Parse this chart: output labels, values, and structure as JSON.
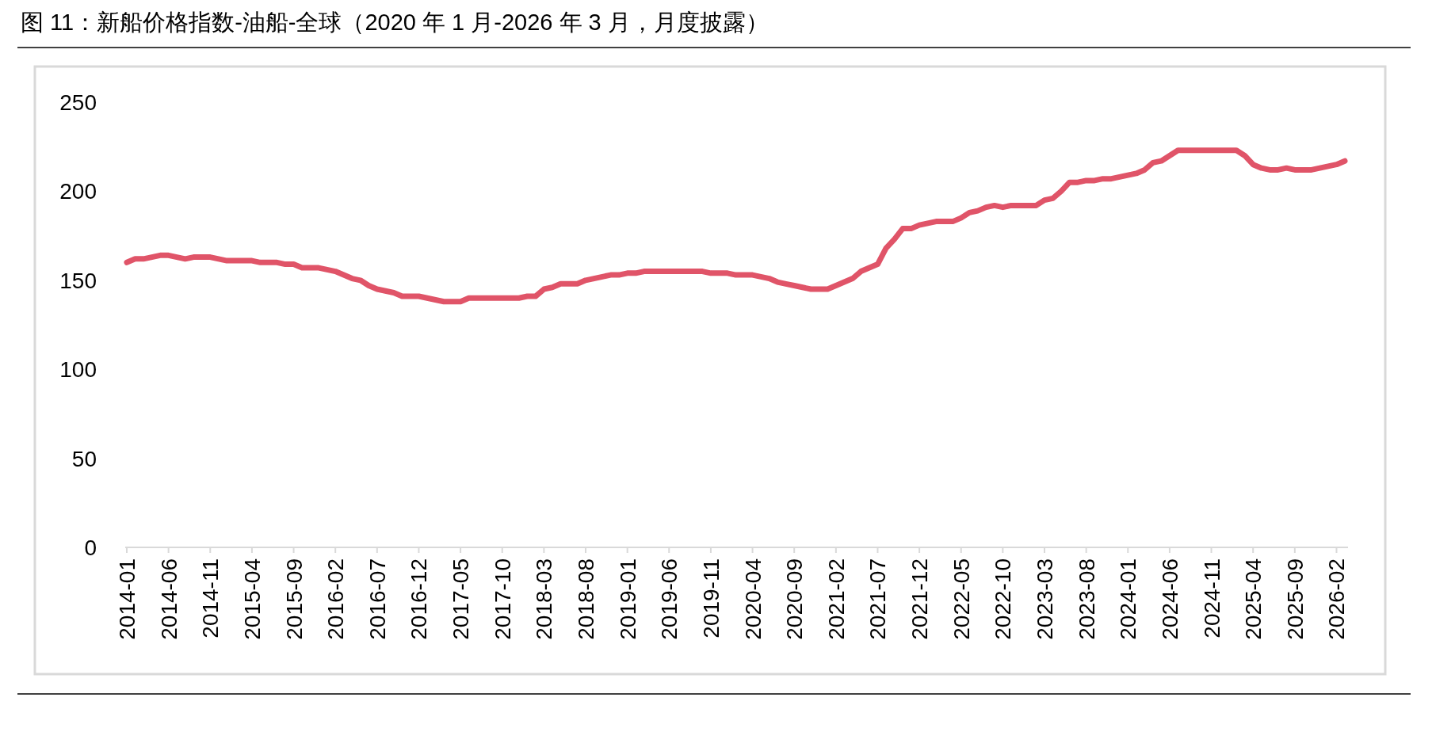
{
  "chart_data": {
    "type": "line",
    "title": "图 11：新船价格指数-油船-全球（2020 年 1 月-2026 年 3 月，月度披露）",
    "categories": [
      "2014-01",
      null,
      null,
      null,
      null,
      "2014-06",
      null,
      null,
      null,
      null,
      "2014-11",
      null,
      null,
      null,
      null,
      "2015-04",
      null,
      null,
      null,
      null,
      "2015-09",
      null,
      null,
      null,
      null,
      "2016-02",
      null,
      null,
      null,
      null,
      "2016-07",
      null,
      null,
      null,
      null,
      "2016-12",
      null,
      null,
      null,
      null,
      "2017-05",
      null,
      null,
      null,
      null,
      "2017-10",
      null,
      null,
      null,
      null,
      "2018-03",
      null,
      null,
      null,
      null,
      "2018-08",
      null,
      null,
      null,
      null,
      "2019-01",
      null,
      null,
      null,
      null,
      "2019-06",
      null,
      null,
      null,
      null,
      "2019-11",
      null,
      null,
      null,
      null,
      "2020-04",
      null,
      null,
      null,
      null,
      "2020-09",
      null,
      null,
      null,
      null,
      "2021-02",
      null,
      null,
      null,
      null,
      "2021-07",
      null,
      null,
      null,
      null,
      "2021-12",
      null,
      null,
      null,
      null,
      "2022-05",
      null,
      null,
      null,
      null,
      "2022-10",
      null,
      null,
      null,
      null,
      "2023-03",
      null,
      null,
      null,
      null,
      "2023-08",
      null,
      null,
      null,
      null,
      "2024-01",
      null,
      null,
      null,
      null,
      "2024-06",
      null,
      null,
      null,
      null,
      "2024-11",
      null,
      null,
      null,
      null,
      "2025-04",
      null,
      null,
      null,
      null,
      "2025-09",
      null,
      null,
      null,
      null,
      "2026-02",
      null
    ],
    "series": [
      {
        "color": "#e05468",
        "values": [
          160,
          162,
          162,
          163,
          164,
          164,
          163,
          162,
          163,
          163,
          163,
          162,
          161,
          161,
          161,
          161,
          160,
          160,
          160,
          159,
          159,
          157,
          157,
          157,
          156,
          155,
          153,
          151,
          150,
          147,
          145,
          144,
          143,
          141,
          141,
          141,
          140,
          139,
          138,
          138,
          138,
          140,
          140,
          140,
          140,
          140,
          140,
          140,
          141,
          141,
          145,
          146,
          148,
          148,
          148,
          150,
          151,
          152,
          153,
          153,
          154,
          154,
          155,
          155,
          155,
          155,
          155,
          155,
          155,
          155,
          154,
          154,
          154,
          153,
          153,
          153,
          152,
          151,
          149,
          148,
          147,
          146,
          145,
          145,
          145,
          147,
          149,
          151,
          155,
          157,
          159,
          168,
          173,
          179,
          179,
          181,
          182,
          183,
          183,
          183,
          185,
          188,
          189,
          191,
          192,
          191,
          192,
          192,
          192,
          192,
          195,
          196,
          200,
          205,
          205,
          206,
          206,
          207,
          207,
          208,
          209,
          210,
          212,
          216,
          217,
          220,
          223,
          223,
          223,
          223,
          223,
          223,
          223,
          223,
          220,
          215,
          213,
          212,
          212,
          213,
          212,
          212,
          212,
          213,
          214,
          215,
          217
        ]
      }
    ],
    "ylim": [
      0,
      250
    ],
    "yticks": [
      0,
      50,
      100,
      150,
      200,
      250
    ],
    "grid": false,
    "marker": "none",
    "line_style": "solid"
  }
}
